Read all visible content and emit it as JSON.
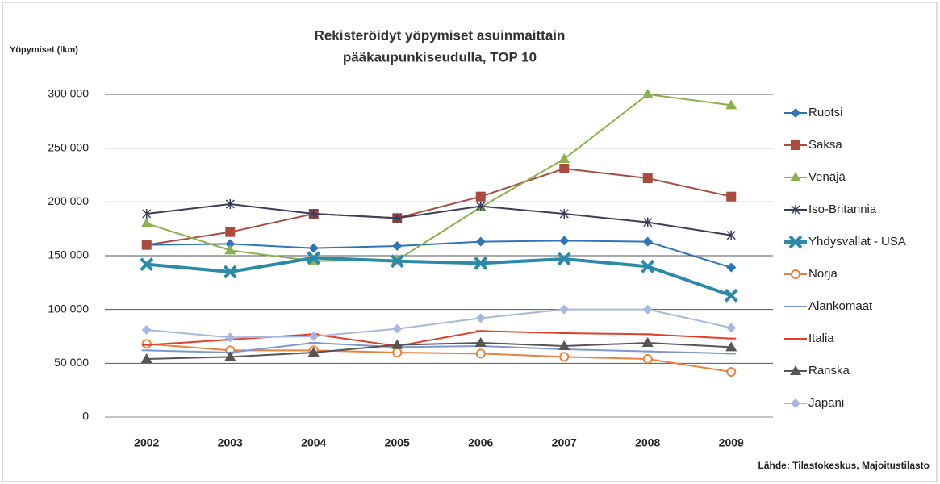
{
  "chart_data": {
    "type": "line",
    "title": "Rekisteröidyt yöpymiset asuinmaittain",
    "subtitle": "pääkaupunkiseudulla, TOP 10",
    "y_label": "Yöpymiset (lkm)",
    "source": "Lähde: Tilastokeskus, Majoitustilasto",
    "categories": [
      "2002",
      "2003",
      "2004",
      "2005",
      "2006",
      "2007",
      "2008",
      "2009"
    ],
    "ylim": [
      0,
      300000
    ],
    "yticks": [
      {
        "value": 0,
        "label": "0"
      },
      {
        "value": 50000,
        "label": "50 000"
      },
      {
        "value": 100000,
        "label": "100 000"
      },
      {
        "value": 150000,
        "label": "150 000"
      },
      {
        "value": 200000,
        "label": "200 000"
      },
      {
        "value": 250000,
        "label": "250 000"
      },
      {
        "value": 300000,
        "label": "300 000"
      }
    ],
    "grid": true,
    "legend": "right",
    "series": [
      {
        "name": "Ruotsi",
        "color": "#2e75b6",
        "marker": "diamond",
        "values": [
          160000,
          161000,
          157000,
          159000,
          163000,
          164000,
          163000,
          139000
        ]
      },
      {
        "name": "Saksa",
        "color": "#a94c3f",
        "marker": "square",
        "values": [
          160000,
          172000,
          189000,
          185000,
          205000,
          231000,
          222000,
          205000
        ]
      },
      {
        "name": "Venäjä",
        "color": "#8db04f",
        "marker": "triangle",
        "values": [
          180000,
          155000,
          145000,
          146000,
          195000,
          240000,
          300000,
          290000
        ]
      },
      {
        "name": "Iso-Britannia",
        "color": "#3b3b5c",
        "marker": "star",
        "values": [
          189000,
          198000,
          189000,
          185000,
          196000,
          189000,
          181000,
          169000
        ]
      },
      {
        "name": "Yhdysvallat - USA",
        "color": "#2a8aa8",
        "marker": "x",
        "values": [
          142000,
          135000,
          148000,
          145000,
          143000,
          147000,
          140000,
          113000
        ]
      },
      {
        "name": "Norja",
        "color": "#e8823c",
        "marker": "circle",
        "values": [
          68000,
          62000,
          62000,
          60000,
          59000,
          56000,
          54000,
          42000
        ]
      },
      {
        "name": "Alankomaat",
        "color": "#7c97d0",
        "marker": "dash",
        "values": [
          62000,
          60000,
          69000,
          65000,
          66000,
          63000,
          61000,
          59000
        ]
      },
      {
        "name": "Italia",
        "color": "#e0402a",
        "marker": "dash",
        "values": [
          67000,
          72000,
          77000,
          66000,
          80000,
          78000,
          77000,
          73000
        ]
      },
      {
        "name": "Ranska",
        "color": "#555555",
        "marker": "triangle",
        "values": [
          54000,
          56000,
          60000,
          67000,
          69000,
          66000,
          69000,
          65000
        ]
      },
      {
        "name": "Japani",
        "color": "#a6b7e0",
        "marker": "diamond",
        "values": [
          81000,
          74000,
          75000,
          82000,
          92000,
          100000,
          100000,
          83000
        ]
      }
    ]
  }
}
